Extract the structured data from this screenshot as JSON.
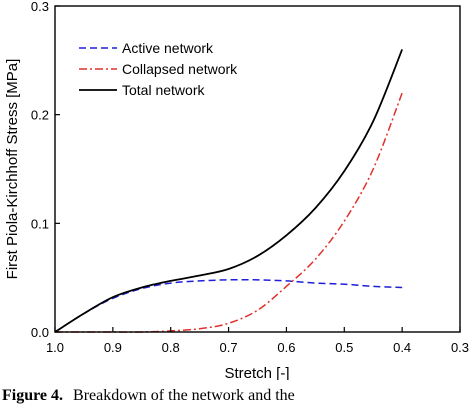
{
  "chart_data": {
    "type": "line",
    "title": "",
    "xlabel": "Stretch [-]",
    "ylabel": "First Piola-Kirchhoff Stress [MPa]",
    "xlim": [
      1.0,
      0.3
    ],
    "ylim": [
      0.0,
      0.3
    ],
    "x_reversed": true,
    "x_ticks": [
      "1.0",
      "0.9",
      "0.8",
      "0.7",
      "0.6",
      "0.5",
      "0.4",
      "0.3"
    ],
    "y_ticks": [
      "0.0",
      "0.1",
      "0.2",
      "0.3"
    ],
    "grid": false,
    "legend_position": "top-left",
    "series": [
      {
        "name": "Active network",
        "color": "#1f1fd6",
        "style": "dashed",
        "x": [
          1.0,
          0.95,
          0.9,
          0.85,
          0.8,
          0.75,
          0.7,
          0.65,
          0.6,
          0.55,
          0.5,
          0.45,
          0.4
        ],
        "y": [
          0.0,
          0.017,
          0.031,
          0.04,
          0.045,
          0.047,
          0.048,
          0.048,
          0.047,
          0.045,
          0.044,
          0.042,
          0.041
        ]
      },
      {
        "name": "Collapsed network",
        "color": "#e0302a",
        "style": "dashdot",
        "x": [
          1.0,
          0.95,
          0.9,
          0.85,
          0.8,
          0.75,
          0.7,
          0.65,
          0.6,
          0.55,
          0.5,
          0.45,
          0.4
        ],
        "y": [
          0.0,
          0.0,
          0.0,
          0.0,
          0.001,
          0.003,
          0.008,
          0.02,
          0.042,
          0.067,
          0.102,
          0.15,
          0.22
        ]
      },
      {
        "name": "Total network",
        "color": "#000000",
        "style": "solid",
        "x": [
          1.0,
          0.95,
          0.9,
          0.85,
          0.8,
          0.75,
          0.7,
          0.65,
          0.6,
          0.55,
          0.5,
          0.45,
          0.4
        ],
        "y": [
          0.0,
          0.017,
          0.032,
          0.041,
          0.047,
          0.052,
          0.058,
          0.07,
          0.089,
          0.114,
          0.148,
          0.194,
          0.26
        ]
      }
    ]
  },
  "caption": {
    "figure_label": "Figure 4.",
    "text": "Breakdown of the network and the"
  }
}
